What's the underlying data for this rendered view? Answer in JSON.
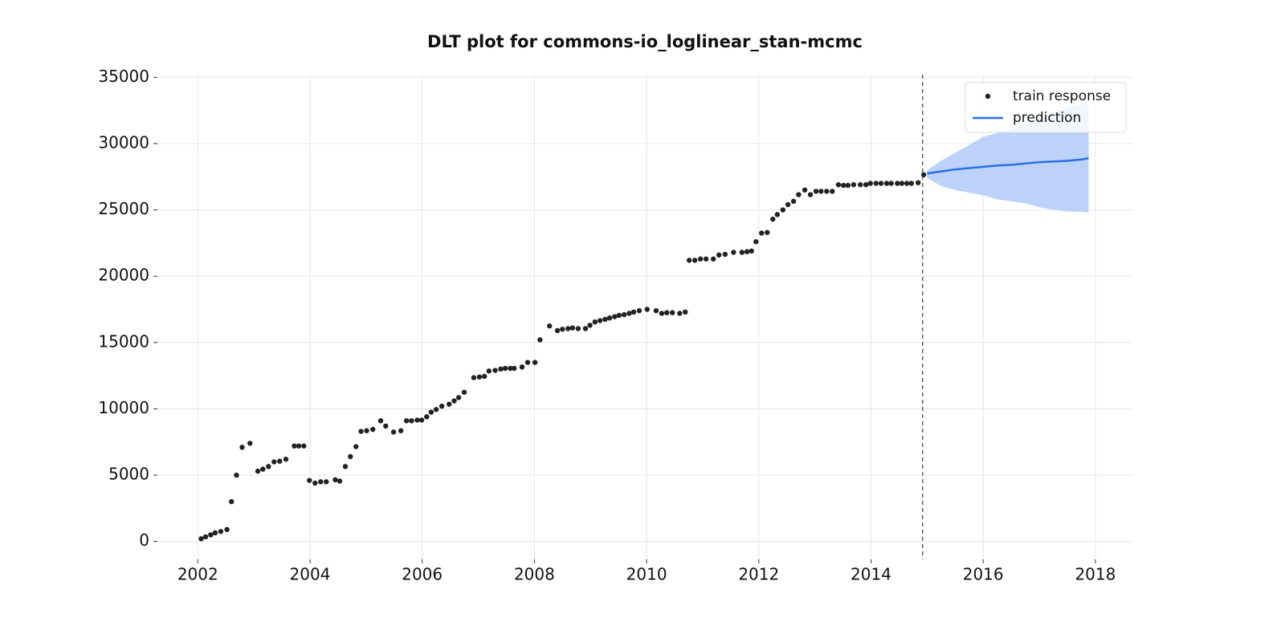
{
  "chart_data": {
    "type": "scatter",
    "title": "DLT plot for commons-io_loglinear_stan-mcmc",
    "xlim": [
      2001.28,
      2018.66
    ],
    "xticks": [
      2002,
      2004,
      2006,
      2008,
      2010,
      2012,
      2014,
      2016,
      2018
    ],
    "ylim": [
      -1350,
      35200
    ],
    "yticks": [
      0,
      5000,
      10000,
      15000,
      20000,
      25000,
      30000,
      35000
    ],
    "grid": true,
    "legend": "upper right",
    "vline": 2014.92,
    "series": [
      {
        "name": "train response",
        "color": "#222222",
        "x": [
          2002.06,
          2002.14,
          2002.23,
          2002.31,
          2002.41,
          2002.52,
          2002.6,
          2002.69,
          2002.79,
          2002.93,
          2003.07,
          2003.16,
          2003.26,
          2003.36,
          2003.46,
          2003.57,
          2003.72,
          2003.8,
          2003.89,
          2003.99,
          2004.09,
          2004.19,
          2004.29,
          2004.45,
          2004.53,
          2004.63,
          2004.72,
          2004.82,
          2004.91,
          2005.01,
          2005.12,
          2005.26,
          2005.35,
          2005.49,
          2005.62,
          2005.72,
          2005.81,
          2005.91,
          2005.99,
          2006.08,
          2006.16,
          2006.25,
          2006.35,
          2006.48,
          2006.57,
          2006.65,
          2006.75,
          2006.92,
          2007.02,
          2007.11,
          2007.19,
          2007.3,
          2007.4,
          2007.48,
          2007.57,
          2007.64,
          2007.78,
          2007.88,
          2008.01,
          2008.1,
          2008.27,
          2008.41,
          2008.5,
          2008.6,
          2008.68,
          2008.78,
          2008.91,
          2008.99,
          2009.08,
          2009.17,
          2009.26,
          2009.34,
          2009.43,
          2009.51,
          2009.6,
          2009.69,
          2009.77,
          2009.87,
          2010.01,
          2010.17,
          2010.27,
          2010.36,
          2010.46,
          2010.59,
          2010.69,
          2010.76,
          2010.86,
          2010.96,
          2011.06,
          2011.19,
          2011.29,
          2011.4,
          2011.55,
          2011.7,
          2011.79,
          2011.87,
          2011.95,
          2012.05,
          2012.15,
          2012.25,
          2012.33,
          2012.43,
          2012.52,
          2012.62,
          2012.71,
          2012.82,
          2012.92,
          2013.02,
          2013.11,
          2013.21,
          2013.31,
          2013.42,
          2013.51,
          2013.59,
          2013.69,
          2013.81,
          2013.91,
          2013.99,
          2014.09,
          2014.18,
          2014.28,
          2014.36,
          2014.47,
          2014.55,
          2014.64,
          2014.72,
          2014.84,
          2014.94
        ],
        "values": [
          200,
          350,
          500,
          650,
          750,
          900,
          3000,
          5000,
          7100,
          7400,
          5300,
          5450,
          5650,
          6000,
          6050,
          6200,
          7200,
          7200,
          7200,
          4600,
          4400,
          4500,
          4500,
          4650,
          4550,
          5650,
          6400,
          7150,
          8300,
          8350,
          8450,
          9100,
          8700,
          8250,
          8350,
          9100,
          9100,
          9150,
          9150,
          9400,
          9750,
          9950,
          10200,
          10350,
          10600,
          10850,
          11250,
          12350,
          12400,
          12450,
          12850,
          12900,
          13000,
          13050,
          13050,
          13050,
          13150,
          13500,
          13500,
          15200,
          16250,
          15900,
          16000,
          16050,
          16100,
          16050,
          16050,
          16300,
          16550,
          16650,
          16750,
          16850,
          16950,
          17050,
          17100,
          17200,
          17300,
          17400,
          17500,
          17400,
          17200,
          17250,
          17250,
          17200,
          17300,
          21200,
          21200,
          21300,
          21300,
          21300,
          21600,
          21650,
          21800,
          21800,
          21850,
          21900,
          22600,
          23250,
          23300,
          24300,
          24650,
          25000,
          25400,
          25650,
          26150,
          26500,
          26150,
          26400,
          26400,
          26400,
          26400,
          26900,
          26850,
          26850,
          26900,
          26900,
          26900,
          27000,
          27000,
          27000,
          27000,
          27000,
          27000,
          27000,
          27000,
          27000,
          27050,
          27650
        ]
      },
      {
        "name": "prediction",
        "color": "#2a6fe6",
        "band_color": "#bcd2f8",
        "x": [
          2015.0,
          2015.25,
          2015.5,
          2015.75,
          2016.0,
          2016.25,
          2016.5,
          2016.75,
          2017.0,
          2017.25,
          2017.5,
          2017.75,
          2017.88
        ],
        "values": [
          27750,
          27900,
          28050,
          28150,
          28250,
          28350,
          28400,
          28500,
          28600,
          28650,
          28700,
          28800,
          28900
        ],
        "upper": [
          28000,
          28700,
          29300,
          29900,
          30500,
          30800,
          31100,
          31500,
          31900,
          32300,
          32700,
          33000,
          33100
        ],
        "lower": [
          27400,
          26800,
          26500,
          26300,
          26100,
          25800,
          25650,
          25500,
          25200,
          25000,
          24900,
          24850,
          24800
        ]
      }
    ]
  }
}
